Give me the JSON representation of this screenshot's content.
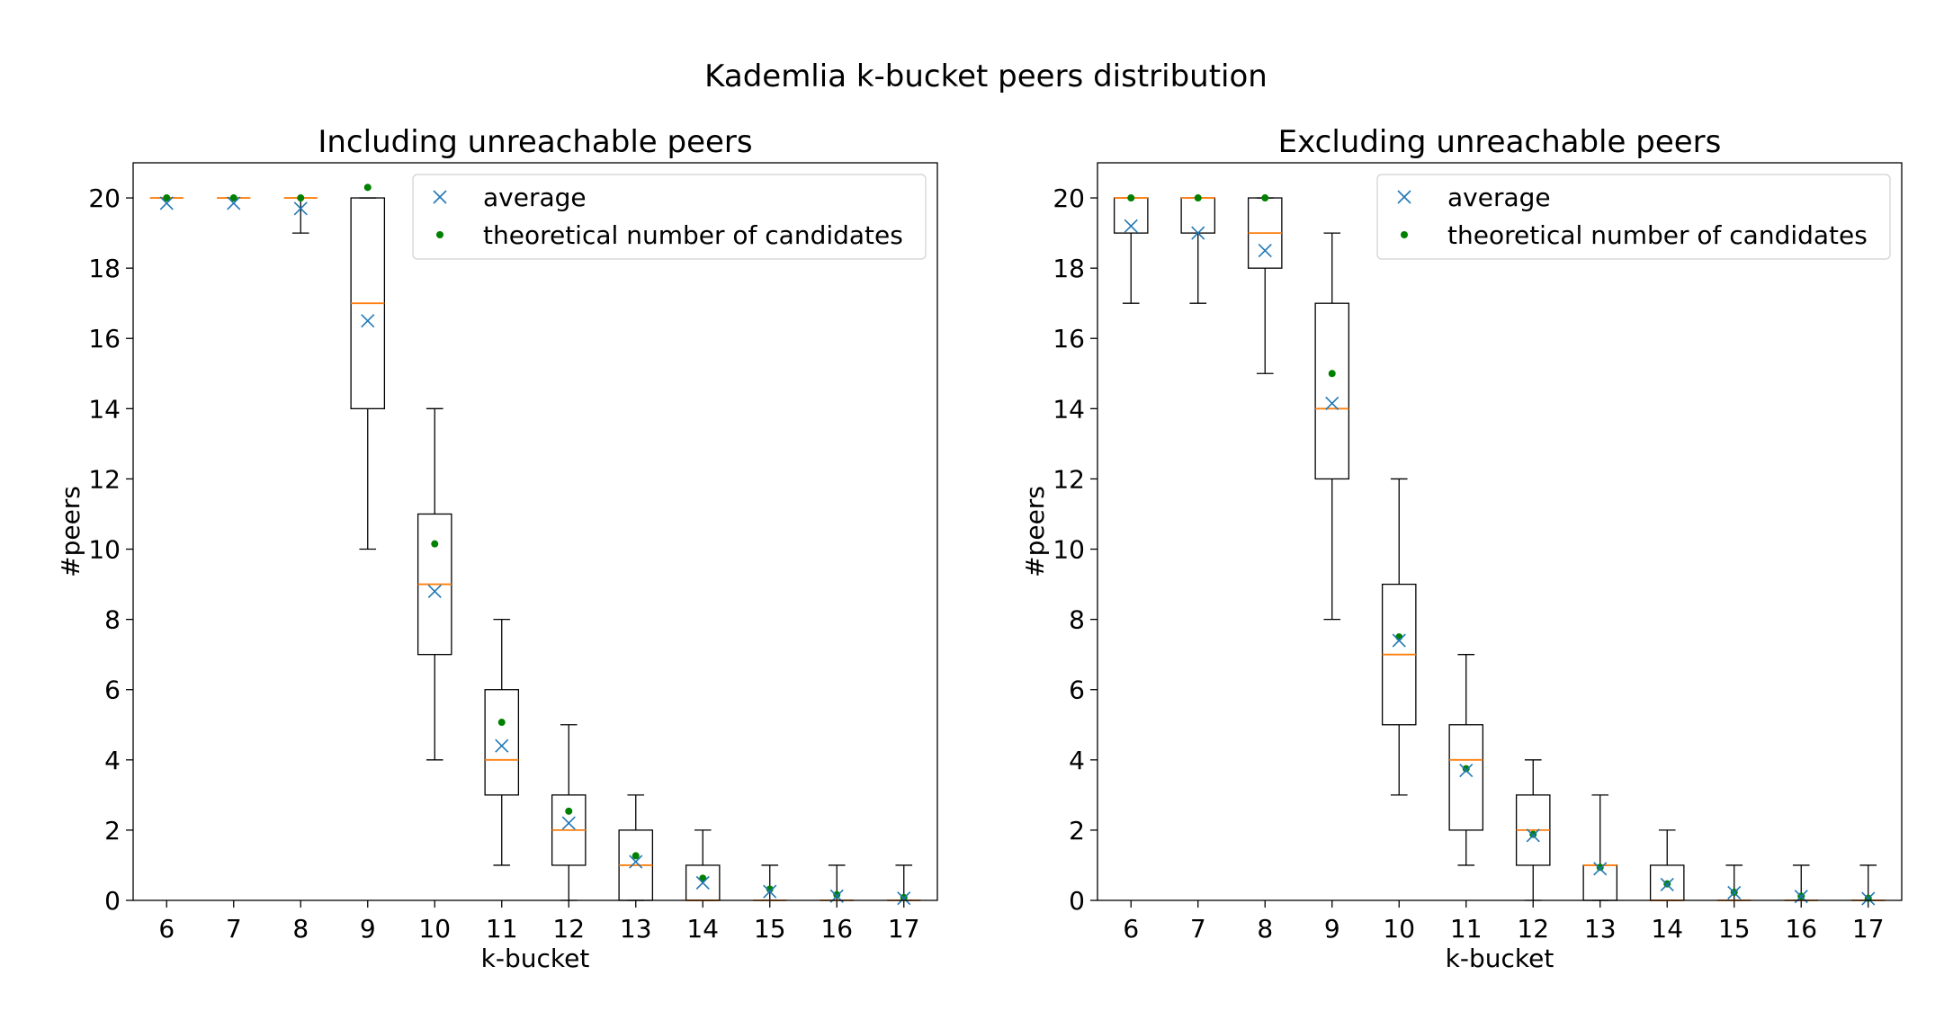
{
  "suptitle": "Kademlia k-bucket peers distribution",
  "legend_labels": {
    "average": "average",
    "theoretical": "theoretical number of candidates"
  },
  "colors": {
    "median": "#ff7f0e",
    "average": "#1f77b4",
    "theoretical": "#008000",
    "box": "#000000"
  },
  "chart_data": [
    {
      "type": "box",
      "title": "Including unreachable peers",
      "xlabel": "k-bucket",
      "ylabel": "#peers",
      "ylim": [
        0,
        21
      ],
      "yticks": [
        0,
        2,
        4,
        6,
        8,
        10,
        12,
        14,
        16,
        18,
        20
      ],
      "grid": false,
      "legend_position": "upper right",
      "categories": [
        "6",
        "7",
        "8",
        "9",
        "10",
        "11",
        "12",
        "13",
        "14",
        "15",
        "16",
        "17"
      ],
      "boxes": [
        {
          "min": 20,
          "q1": 20,
          "median": 20,
          "q3": 20,
          "max": 20
        },
        {
          "min": 20,
          "q1": 20,
          "median": 20,
          "q3": 20,
          "max": 20
        },
        {
          "min": 19,
          "q1": 20,
          "median": 20,
          "q3": 20,
          "max": 20
        },
        {
          "min": 10,
          "q1": 14,
          "median": 17,
          "q3": 20,
          "max": 20
        },
        {
          "min": 4,
          "q1": 7,
          "median": 9,
          "q3": 11,
          "max": 14
        },
        {
          "min": 1,
          "q1": 3,
          "median": 4,
          "q3": 6,
          "max": 8
        },
        {
          "min": 0,
          "q1": 1,
          "median": 2,
          "q3": 3,
          "max": 5
        },
        {
          "min": 0,
          "q1": 0,
          "median": 1,
          "q3": 2,
          "max": 3
        },
        {
          "min": 0,
          "q1": 0,
          "median": 0,
          "q3": 1,
          "max": 2
        },
        {
          "min": 0,
          "q1": 0,
          "median": 0,
          "q3": 0,
          "max": 1
        },
        {
          "min": 0,
          "q1": 0,
          "median": 0,
          "q3": 0,
          "max": 1
        },
        {
          "min": 0,
          "q1": 0,
          "median": 0,
          "q3": 0,
          "max": 1
        }
      ],
      "average": [
        19.85,
        19.85,
        19.7,
        16.5,
        8.8,
        4.4,
        2.2,
        1.1,
        0.5,
        0.25,
        0.12,
        0.06
      ],
      "theoretical": [
        20.0,
        20.0,
        20.0,
        20.3,
        10.15,
        5.07,
        2.54,
        1.27,
        0.63,
        0.32,
        0.16,
        0.08
      ]
    },
    {
      "type": "box",
      "title": "Excluding unreachable peers",
      "xlabel": "k-bucket",
      "ylabel": "#peers",
      "ylim": [
        0,
        21
      ],
      "yticks": [
        0,
        2,
        4,
        6,
        8,
        10,
        12,
        14,
        16,
        18,
        20
      ],
      "grid": false,
      "legend_position": "upper right",
      "categories": [
        "6",
        "7",
        "8",
        "9",
        "10",
        "11",
        "12",
        "13",
        "14",
        "15",
        "16",
        "17"
      ],
      "boxes": [
        {
          "min": 17,
          "q1": 19,
          "median": 20,
          "q3": 20,
          "max": 20
        },
        {
          "min": 17,
          "q1": 19,
          "median": 20,
          "q3": 20,
          "max": 20
        },
        {
          "min": 15,
          "q1": 18,
          "median": 19,
          "q3": 20,
          "max": 20
        },
        {
          "min": 8,
          "q1": 12,
          "median": 14,
          "q3": 17,
          "max": 19
        },
        {
          "min": 3,
          "q1": 5,
          "median": 7,
          "q3": 9,
          "max": 12
        },
        {
          "min": 1,
          "q1": 2,
          "median": 4,
          "q3": 5,
          "max": 7
        },
        {
          "min": 0,
          "q1": 1,
          "median": 2,
          "q3": 3,
          "max": 4
        },
        {
          "min": 0,
          "q1": 0,
          "median": 1,
          "q3": 1,
          "max": 3
        },
        {
          "min": 0,
          "q1": 0,
          "median": 0,
          "q3": 1,
          "max": 2
        },
        {
          "min": 0,
          "q1": 0,
          "median": 0,
          "q3": 0,
          "max": 1
        },
        {
          "min": 0,
          "q1": 0,
          "median": 0,
          "q3": 0,
          "max": 1
        },
        {
          "min": 0,
          "q1": 0,
          "median": 0,
          "q3": 0,
          "max": 1
        }
      ],
      "average": [
        19.2,
        19.0,
        18.5,
        14.15,
        7.4,
        3.7,
        1.85,
        0.9,
        0.45,
        0.22,
        0.11,
        0.05
      ],
      "theoretical": [
        20.0,
        20.0,
        20.0,
        15.0,
        7.5,
        3.75,
        1.88,
        0.94,
        0.47,
        0.23,
        0.12,
        0.06
      ]
    }
  ]
}
